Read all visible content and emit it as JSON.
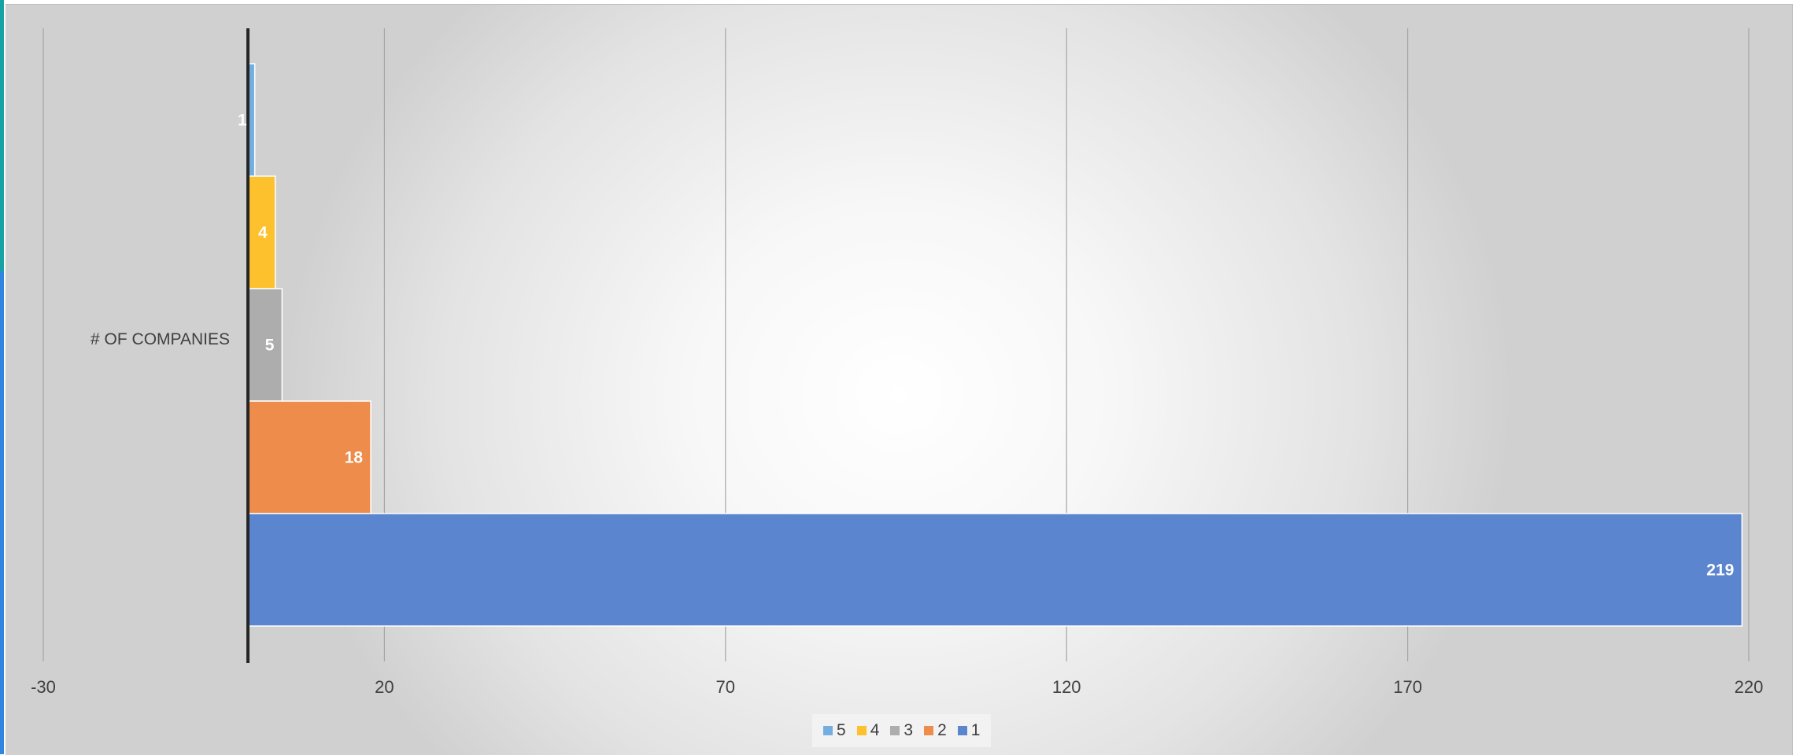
{
  "chart_data": {
    "type": "bar",
    "orientation": "horizontal",
    "categories": [
      "# OF COMPANIES"
    ],
    "series": [
      {
        "name": "5",
        "values": [
          1
        ],
        "color": "#74aee0"
      },
      {
        "name": "4",
        "values": [
          4
        ],
        "color": "#fcc12c"
      },
      {
        "name": "3",
        "values": [
          5
        ],
        "color": "#adadad"
      },
      {
        "name": "2",
        "values": [
          18
        ],
        "color": "#ed8c4b"
      },
      {
        "name": "1",
        "values": [
          219
        ],
        "color": "#5b86cf"
      }
    ],
    "xlim": [
      -30,
      220
    ],
    "xticks": [
      -30,
      20,
      70,
      120,
      170,
      220
    ],
    "grid": true,
    "legend_position": "bottom",
    "data_labels": true
  }
}
